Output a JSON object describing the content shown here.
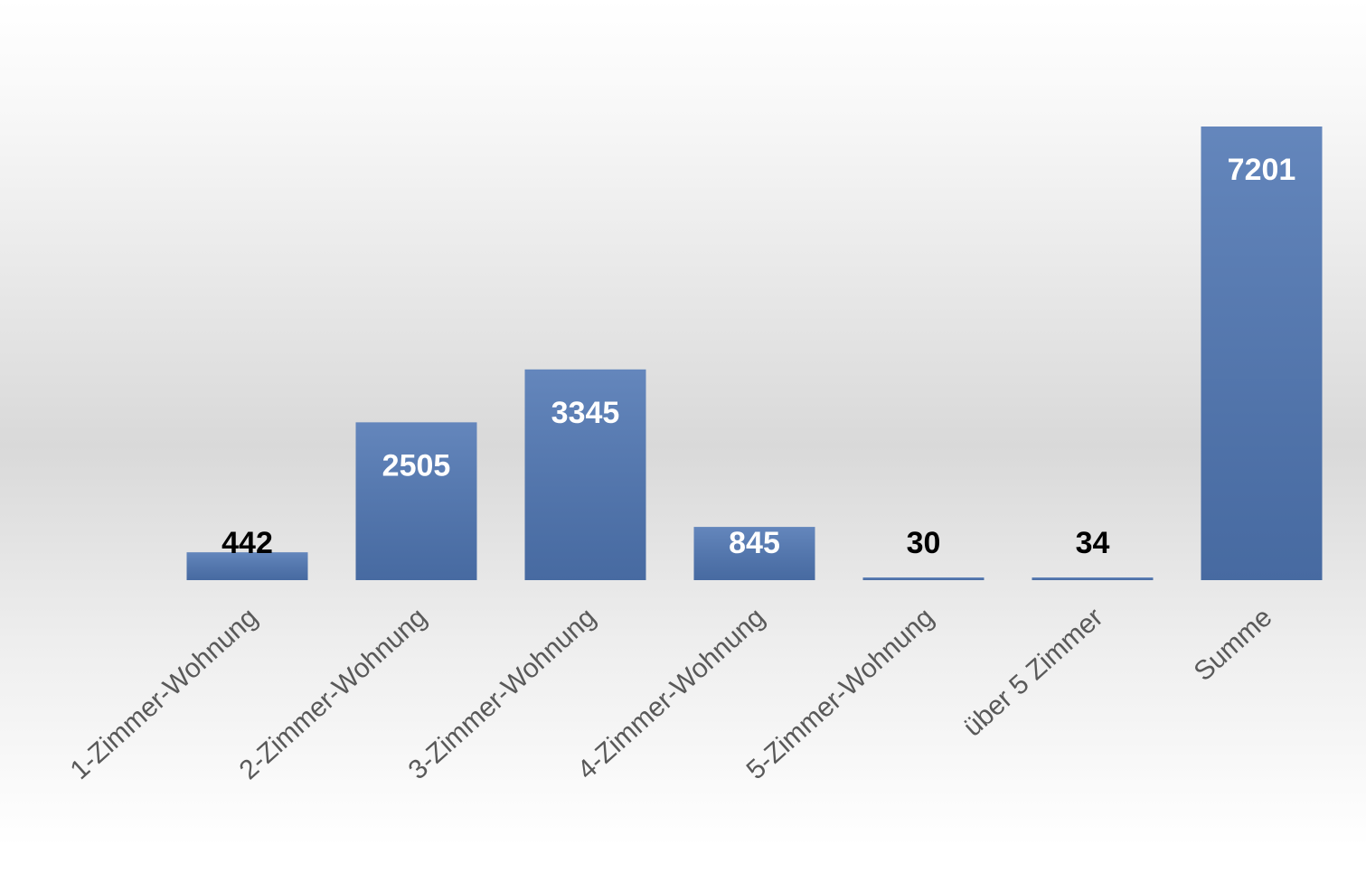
{
  "chart_data": {
    "type": "bar",
    "categories": [
      "1-Zimmer-Wohnung",
      "2-Zimmer-Wohnung",
      "3-Zimmer-Wohnung",
      "4-Zimmer-Wohnung",
      "5-Zimmer-Wohnung",
      "über 5 Zimmer",
      "Summe"
    ],
    "values": [
      442,
      2505,
      3345,
      845,
      30,
      34,
      7201
    ],
    "color": "#4f76b3"
  }
}
